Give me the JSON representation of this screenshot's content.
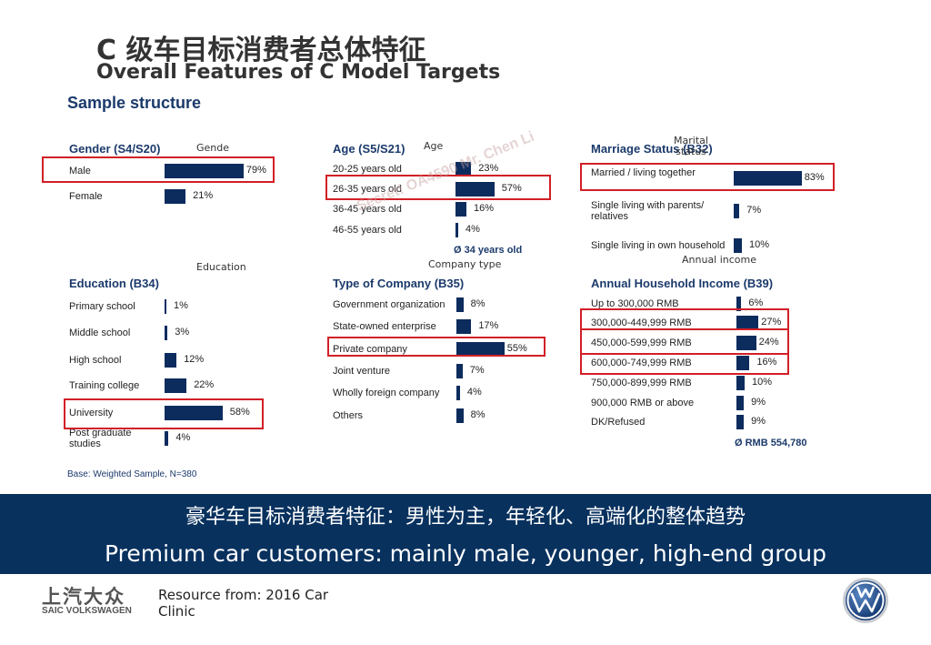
{
  "title_cn": "C 级车目标消费者总体特征",
  "title_en": "Overall Features of C Model Targets",
  "sample_structure": "Sample structure",
  "watermark": "Secret! OA4590 Mr. Chen Li",
  "base_note": "Base: Weighted Sample, N=380",
  "banner": {
    "cn": "豪华车目标消费者特征：男性为主，年轻化、高端化的整体趋势",
    "en": "Premium car customers: mainly male, younger, high-end group"
  },
  "footer": {
    "logo_cn": "上汽大众",
    "logo_en": "SAIC VOLKSWAGEN",
    "resource": "Resource from: 2016 Car Clinic"
  },
  "colors": {
    "bar": "#0d2c5e",
    "highlight": "#d21f26",
    "banner": "#08315e"
  },
  "chart_data": [
    {
      "id": "gender",
      "type": "bar",
      "title": "Gender (S4/S20)",
      "small_label": "Gende",
      "categories": [
        "Male",
        "Female"
      ],
      "values": [
        79,
        21
      ],
      "labels": [
        "79%",
        "21%"
      ],
      "highlight": [
        0
      ]
    },
    {
      "id": "age",
      "type": "bar",
      "title": "Age (S5/S21)",
      "small_label": "Age",
      "categories": [
        "20-25 years old",
        "26-35 years old",
        "36-45 years old",
        "46-55 years old"
      ],
      "values": [
        23,
        57,
        16,
        4
      ],
      "labels": [
        "23%",
        "57%",
        "16%",
        "4%"
      ],
      "highlight": [
        1
      ],
      "average": "Ø 34 years old"
    },
    {
      "id": "marriage",
      "type": "bar",
      "title": "Marriage Status (B32)",
      "small_label": "Marital status",
      "categories": [
        "Married / living together",
        "Single living with parents/ relatives",
        "Single living in own household"
      ],
      "values": [
        83,
        7,
        10
      ],
      "labels": [
        "83%",
        "7%",
        "10%"
      ],
      "highlight": [
        0
      ]
    },
    {
      "id": "education",
      "type": "bar",
      "title": "Education (B34)",
      "small_label": "Education",
      "categories": [
        "Primary school",
        "Middle school",
        "High school",
        "Training college",
        "University",
        "Post graduate studies"
      ],
      "values": [
        1,
        3,
        12,
        22,
        58,
        4
      ],
      "labels": [
        "1%",
        "3%",
        "12%",
        "22%",
        "58%",
        "4%"
      ],
      "highlight": [
        4
      ]
    },
    {
      "id": "company",
      "type": "bar",
      "title": "Type of Company (B35)",
      "small_label": "Company type",
      "categories": [
        "Government organization",
        "State-owned enterprise",
        "Private company",
        "Joint venture",
        "Wholly foreign company",
        "Others"
      ],
      "values": [
        8,
        17,
        55,
        7,
        4,
        8
      ],
      "labels": [
        "8%",
        "17%",
        "55%",
        "7%",
        "4%",
        "8%"
      ],
      "highlight": [
        2
      ]
    },
    {
      "id": "income",
      "type": "bar",
      "title": "Annual Household Income (B39)",
      "small_label": "Annual income",
      "categories": [
        "Up to 300,000 RMB",
        "300,000-449,999 RMB",
        "450,000-599,999 RMB",
        "600,000-749,999 RMB",
        "750,000-899,999 RMB",
        "900,000 RMB or above",
        "DK/Refused"
      ],
      "values": [
        6,
        27,
        24,
        16,
        10,
        9,
        9
      ],
      "labels": [
        "6%",
        "27%",
        "24%",
        "16%",
        "10%",
        "9%",
        "9%"
      ],
      "highlight": [
        1,
        2
      ],
      "average": "Ø RMB 554,780"
    }
  ]
}
